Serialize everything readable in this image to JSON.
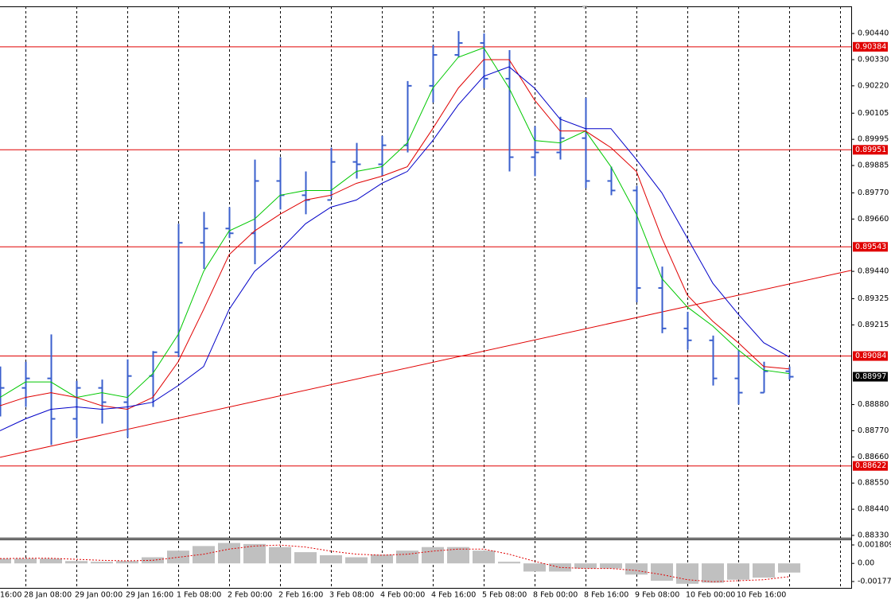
{
  "chart_data": [
    {
      "type": "ohlc",
      "categories": [
        "16:00",
        "28 Jan 08:00",
        null,
        "29 Jan 00:00",
        null,
        "29 Jan 16:00",
        null,
        "1 Feb 08:00",
        null,
        "2 Feb 00:00",
        null,
        "2 Feb 16:00",
        null,
        "3 Feb 08:00",
        null,
        "4 Feb 00:00",
        null,
        "4 Feb 16:00",
        null,
        "5 Feb 08:00",
        null,
        "8 Feb 00:00",
        null,
        "8 Feb 16:00",
        null,
        "9 Feb 08:00",
        null,
        "10 Feb 00:00",
        null,
        "10 Feb 16:00",
        null,
        null
      ],
      "open": [
        0.88935,
        0.8895,
        0.8899,
        0.8882,
        0.8895,
        0.8889,
        0.89,
        0.891,
        0.8956,
        0.8962,
        0.896,
        0.8982,
        0.8976,
        0.8974,
        0.899,
        0.8989,
        0.8997,
        0.9022,
        0.9035,
        0.904,
        0.9025,
        0.8992,
        0.8994,
        0.9,
        0.8982,
        0.8978,
        0.8937,
        0.892,
        0.8915,
        0.8899,
        0.8893,
        0.8902
      ],
      "high": [
        0.8904,
        0.8906,
        0.89175,
        0.8898,
        0.88985,
        0.8907,
        0.89105,
        0.8964,
        0.8969,
        0.8971,
        0.8991,
        0.8992,
        0.8986,
        0.8996,
        0.8998,
        0.9001,
        0.9024,
        0.9039,
        0.9045,
        0.9044,
        0.9037,
        0.9005,
        0.9009,
        0.9017,
        0.8988,
        0.898,
        0.8946,
        0.8927,
        0.8917,
        0.8911,
        0.8906,
        0.8904
      ],
      "low": [
        0.8883,
        0.8887,
        0.8871,
        0.8874,
        0.888,
        0.8874,
        0.8887,
        0.8908,
        0.8945,
        0.8958,
        0.8947,
        0.897,
        0.8968,
        0.8975,
        0.8983,
        0.8984,
        0.8994,
        0.9015,
        0.9034,
        0.9021,
        0.8986,
        0.8984,
        0.8991,
        0.8979,
        0.8976,
        0.8931,
        0.8918,
        0.8911,
        0.8896,
        0.8888,
        0.8893,
        0.88985
      ],
      "close": [
        0.8895,
        0.8899,
        0.8882,
        0.8895,
        0.8889,
        0.89,
        0.891,
        0.8956,
        0.8962,
        0.896,
        0.8982,
        0.8976,
        0.8974,
        0.899,
        0.8989,
        0.8997,
        0.9022,
        0.9035,
        0.904,
        0.9025,
        0.8992,
        0.8994,
        0.9,
        0.8982,
        0.8978,
        0.8937,
        0.892,
        0.8915,
        0.8899,
        0.8893,
        0.8902,
        0.88997
      ],
      "color": "#3a5fcd",
      "series": [
        {
          "color": "#00c800",
          "values": [
            0.8891,
            0.88975,
            0.88975,
            0.8891,
            0.8893,
            0.8891,
            0.8901,
            0.89175,
            0.8944,
            0.8961,
            0.8966,
            0.8976,
            0.8978,
            0.8978,
            0.8986,
            0.8988,
            0.8998,
            0.9021,
            0.9034,
            0.9038,
            0.9021,
            0.8999,
            0.8998,
            0.9003,
            0.8988,
            0.8968,
            0.8941,
            0.8929,
            0.8921,
            0.8911,
            0.89025,
            0.8901
          ]
        },
        {
          "color": "#e00000",
          "values": [
            0.88875,
            0.8891,
            0.8893,
            0.8891,
            0.88875,
            0.8886,
            0.8891,
            0.8906,
            0.8928,
            0.8951,
            0.8961,
            0.8968,
            0.8974,
            0.8976,
            0.8981,
            0.8984,
            0.8988,
            0.9004,
            0.9021,
            0.9033,
            0.9033,
            0.9016,
            0.9003,
            0.9003,
            0.8996,
            0.8986,
            0.8958,
            0.8934,
            0.8923,
            0.8914,
            0.8904,
            0.8903
          ]
        },
        {
          "color": "#0000c8",
          "values": [
            0.8877,
            0.8882,
            0.8886,
            0.8887,
            0.8886,
            0.8887,
            0.8889,
            0.8896,
            0.8904,
            0.8928,
            0.8944,
            0.8953,
            0.8964,
            0.8971,
            0.8974,
            0.8981,
            0.8986,
            0.8999,
            0.9014,
            0.9026,
            0.903,
            0.9021,
            0.9008,
            0.9004,
            0.9004,
            0.8991,
            0.8977,
            0.8958,
            0.8939,
            0.8926,
            0.8914,
            0.8908
          ]
        }
      ],
      "ylim": [
        0.8832,
        0.90554
      ],
      "yticks": [
        {
          "value": 0.9044,
          "label": "0.90440"
        },
        {
          "value": 0.9033,
          "label": "0.90330"
        },
        {
          "value": 0.9022,
          "label": "0.90220"
        },
        {
          "value": 0.90105,
          "label": "0.90105"
        },
        {
          "value": 0.89995,
          "label": "0.89995"
        },
        {
          "value": 0.89885,
          "label": "0.89885"
        },
        {
          "value": 0.8977,
          "label": "0.89770"
        },
        {
          "value": 0.8966,
          "label": "0.89660"
        },
        {
          "value": 0.8944,
          "label": "0.89440"
        },
        {
          "value": 0.89325,
          "label": "0.89325"
        },
        {
          "value": 0.89215,
          "label": "0.89215"
        },
        {
          "value": 0.8888,
          "label": "0.88880"
        },
        {
          "value": 0.8877,
          "label": "0.88770"
        },
        {
          "value": 0.8866,
          "label": "0.88660"
        },
        {
          "value": 0.8855,
          "label": "0.88550"
        },
        {
          "value": 0.8844,
          "label": "0.88440"
        },
        {
          "value": 0.8833,
          "label": "0.88330"
        }
      ],
      "levels": [
        {
          "value": 0.90384,
          "label": "0.90384"
        },
        {
          "value": 0.89951,
          "label": "0.89951"
        },
        {
          "value": 0.89543,
          "label": "0.89543"
        },
        {
          "value": 0.89084,
          "label": "0.89084"
        },
        {
          "value": 0.88622,
          "label": "0.88622"
        }
      ],
      "level_color": "#e00000",
      "trendline": {
        "values": [
          0.88658,
          0.89444
        ],
        "color": "#e00000"
      },
      "last_price": {
        "value": 0.88997,
        "label": "0.88997"
      },
      "grid": true
    },
    {
      "type": "macd",
      "values": [
        0.00047,
        0.00047,
        0.00047,
        0.00023,
        0.00016,
        0.00023,
        0.0006,
        0.00125,
        0.0017,
        0.002,
        0.0019,
        0.0016,
        0.0011,
        0.0008,
        0.0006,
        0.00086,
        0.00125,
        0.0016,
        0.0016,
        0.00125,
        0.00016,
        -0.0008,
        -0.0008,
        -0.0005,
        -0.0005,
        -0.0011,
        -0.0017,
        -0.002,
        -0.0019,
        -0.0016,
        -0.0014,
        -0.0009
      ],
      "color": "#c0c0c0",
      "signal": {
        "color": "#e00000",
        "values": [
          0.00047,
          0.0005,
          0.0005,
          0.0004,
          0.0003,
          0.00025,
          0.0003,
          0.0006,
          0.0009,
          0.0014,
          0.0017,
          0.0018,
          0.0016,
          0.0012,
          0.0009,
          0.0008,
          0.0009,
          0.0012,
          0.0014,
          0.0014,
          0.0009,
          0.0002,
          -0.0004,
          -0.0005,
          -0.0005,
          -0.0007,
          -0.0011,
          -0.0016,
          -0.0018,
          -0.0017,
          -0.0016,
          -0.0013
        ]
      },
      "ylim": [
        -0.002246,
        0.002277
      ],
      "yticks": [
        0.001809,
        {
          "value": 0,
          "label": "0.00"
        },
        -0.001778
      ]
    }
  ]
}
